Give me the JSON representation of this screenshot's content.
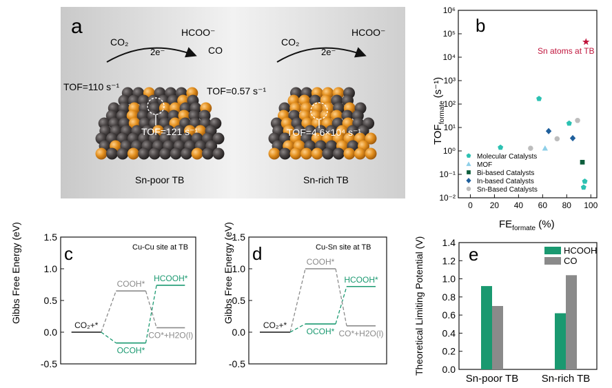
{
  "panel_a": {
    "label": "a",
    "left": {
      "reactant": "CO₂",
      "electrons": "2e⁻",
      "product1": "HCOO⁻",
      "product2": "CO",
      "tof_left": "TOF=110 s⁻¹",
      "tof_center": "TOF=121 s⁻¹",
      "tof_right": "TOF=0.57 s⁻¹",
      "caption": "Sn-poor TB"
    },
    "right": {
      "reactant": "CO₂",
      "electrons": "2e⁻",
      "product1": "HCOO⁻",
      "tof_center": "TOF=4.6×10⁴ s⁻¹",
      "caption": "Sn-rich TB"
    },
    "colors": {
      "bg": "#d9d9d9",
      "dark_atom": "#3b3636",
      "orange_atom": "#e08a1e"
    }
  },
  "chart_data": [
    {
      "panel": "b",
      "type": "scatter",
      "xlabel_main": "FE",
      "xlabel_sub": "formate",
      "xlabel_unit": " (%)",
      "ylabel_main": "TOF",
      "ylabel_sub": "formate",
      "ylabel_unit": " (s⁻¹)",
      "xlim": [
        -10,
        105
      ],
      "ylim_log10": [
        -2,
        6
      ],
      "yscale": "log",
      "xticks": [
        "0",
        "20",
        "40",
        "60",
        "80",
        "100"
      ],
      "yticks": [
        "10⁻²",
        "10⁻¹",
        "10⁰",
        "10¹",
        "10²",
        "10³",
        "10⁴",
        "10⁵",
        "10⁶"
      ],
      "annotation": "Sn atoms at TB",
      "series": [
        {
          "name": "Molecular Catalysts",
          "marker": "pentagon",
          "color": "#2cc1b2",
          "points": [
            [
              25,
              1.4
            ],
            [
              57,
              170
            ],
            [
              82,
              15
            ],
            [
              95,
              0.05
            ],
            [
              94,
              0.028
            ]
          ]
        },
        {
          "name": "MOF",
          "marker": "triangle",
          "color": "#8ecfe8",
          "points": [
            [
              62,
              1.3
            ]
          ]
        },
        {
          "name": "Bi-based Catalysts",
          "marker": "square",
          "color": "#0d5e3c",
          "points": [
            [
              93,
              0.33
            ]
          ]
        },
        {
          "name": "In-based Catalysts",
          "marker": "diamond",
          "color": "#1f5f9c",
          "points": [
            [
              65,
              7
            ],
            [
              85,
              3.5
            ]
          ]
        },
        {
          "name": "Sn-Based Catalysts",
          "marker": "circle",
          "color": "#bdbdbd",
          "points": [
            [
              50,
              1.3
            ],
            [
              72,
              3.3
            ],
            [
              89,
              20
            ]
          ]
        }
      ],
      "highlight": {
        "marker": "star",
        "color": "#c0143c",
        "point": [
          96,
          45000
        ]
      }
    },
    {
      "panel": "c",
      "type": "line",
      "title": "Cu-Cu site at TB",
      "ylabel": "Gibbs Free Energy (eV)",
      "ylim": [
        -0.5,
        1.5
      ],
      "yticks": [
        "-0.5",
        "0.0",
        "0.5",
        "1.0",
        "1.5"
      ],
      "levels": [
        {
          "label": "CO₂+*",
          "value": 0.0,
          "color": "#111111",
          "stage": 0
        },
        {
          "label": "COOH*",
          "value": 0.65,
          "color": "#8a8a8a",
          "stage": 1
        },
        {
          "label": "OCOH*",
          "value": -0.17,
          "color": "#1a9970",
          "stage": 1
        },
        {
          "label": "HCOOH*",
          "value": 0.74,
          "color": "#1a9970",
          "stage": 2
        },
        {
          "label": "CO*+H2O(l)",
          "value": 0.07,
          "color": "#8a8a8a",
          "stage": 2
        }
      ]
    },
    {
      "panel": "d",
      "type": "line",
      "title": "Cu-Sn site at TB",
      "ylabel": "Gibbs Free Energy (eV)",
      "ylim": [
        -0.5,
        1.5
      ],
      "yticks": [
        "-0.5",
        "0.0",
        "0.5",
        "1.0",
        "1.5"
      ],
      "levels": [
        {
          "label": "CO₂+*",
          "value": 0.0,
          "color": "#111111",
          "stage": 0
        },
        {
          "label": "COOH*",
          "value": 1.0,
          "color": "#8a8a8a",
          "stage": 1
        },
        {
          "label": "OCOH*",
          "value": 0.13,
          "color": "#1a9970",
          "stage": 1
        },
        {
          "label": "HCOOH*",
          "value": 0.72,
          "color": "#1a9970",
          "stage": 2
        },
        {
          "label": "CO*+H2O(l)",
          "value": 0.1,
          "color": "#8a8a8a",
          "stage": 2
        }
      ]
    },
    {
      "panel": "e",
      "type": "bar",
      "ylabel": "Theoretical Limiting Potential (V)",
      "ylim": [
        0,
        1.4
      ],
      "yticks": [
        "0.0",
        "0.2",
        "0.4",
        "0.6",
        "0.8",
        "1.0",
        "1.2",
        "1.4"
      ],
      "categories": [
        "Sn-poor TB",
        "Sn-rich TB"
      ],
      "series": [
        {
          "name": "HCOOH",
          "color": "#1a9970",
          "values": [
            0.92,
            0.62
          ]
        },
        {
          "name": "CO",
          "color": "#8a8a8a",
          "values": [
            0.7,
            1.04
          ]
        }
      ]
    }
  ]
}
